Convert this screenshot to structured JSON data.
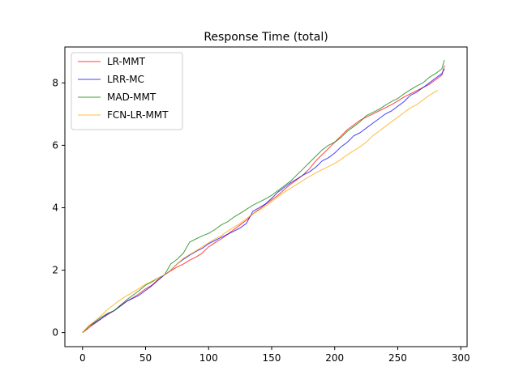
{
  "chart_data": {
    "type": "line",
    "title": "Response Time (total)",
    "xlabel": "",
    "ylabel": "",
    "xlim": [
      -14,
      305
    ],
    "ylim": [
      -0.45,
      9.15
    ],
    "xticks": [
      0,
      50,
      100,
      150,
      200,
      250,
      300
    ],
    "yticks": [
      0,
      2,
      4,
      6,
      8
    ],
    "grid": false,
    "legend_position": "top-left",
    "series": [
      {
        "name": "LR-MMT",
        "color": "#ff0000",
        "points": [
          [
            0,
            0
          ],
          [
            5,
            0.15
          ],
          [
            10,
            0.3
          ],
          [
            15,
            0.45
          ],
          [
            20,
            0.58
          ],
          [
            25,
            0.7
          ],
          [
            30,
            0.85
          ],
          [
            35,
            1.0
          ],
          [
            40,
            1.12
          ],
          [
            45,
            1.25
          ],
          [
            50,
            1.4
          ],
          [
            55,
            1.52
          ],
          [
            60,
            1.7
          ],
          [
            65,
            1.85
          ],
          [
            70,
            1.98
          ],
          [
            75,
            2.1
          ],
          [
            80,
            2.2
          ],
          [
            85,
            2.32
          ],
          [
            90,
            2.42
          ],
          [
            95,
            2.55
          ],
          [
            100,
            2.75
          ],
          [
            105,
            2.88
          ],
          [
            110,
            3.0
          ],
          [
            115,
            3.15
          ],
          [
            120,
            3.3
          ],
          [
            125,
            3.45
          ],
          [
            130,
            3.6
          ],
          [
            135,
            3.8
          ],
          [
            140,
            3.95
          ],
          [
            145,
            4.1
          ],
          [
            150,
            4.25
          ],
          [
            155,
            4.4
          ],
          [
            160,
            4.58
          ],
          [
            165,
            4.75
          ],
          [
            170,
            4.9
          ],
          [
            175,
            5.05
          ],
          [
            180,
            5.25
          ],
          [
            185,
            5.5
          ],
          [
            190,
            5.7
          ],
          [
            195,
            5.9
          ],
          [
            200,
            6.1
          ],
          [
            205,
            6.3
          ],
          [
            210,
            6.5
          ],
          [
            215,
            6.65
          ],
          [
            220,
            6.8
          ],
          [
            225,
            6.9
          ],
          [
            230,
            7.0
          ],
          [
            235,
            7.1
          ],
          [
            240,
            7.2
          ],
          [
            245,
            7.3
          ],
          [
            250,
            7.42
          ],
          [
            255,
            7.55
          ],
          [
            260,
            7.65
          ],
          [
            265,
            7.75
          ],
          [
            270,
            7.85
          ],
          [
            275,
            7.95
          ],
          [
            280,
            8.1
          ],
          [
            285,
            8.25
          ],
          [
            287,
            8.55
          ]
        ]
      },
      {
        "name": "LRR-MC",
        "color": "#0000ff",
        "points": [
          [
            0,
            0
          ],
          [
            5,
            0.2
          ],
          [
            10,
            0.32
          ],
          [
            15,
            0.45
          ],
          [
            20,
            0.6
          ],
          [
            25,
            0.7
          ],
          [
            30,
            0.85
          ],
          [
            35,
            1.0
          ],
          [
            40,
            1.1
          ],
          [
            45,
            1.2
          ],
          [
            50,
            1.35
          ],
          [
            55,
            1.5
          ],
          [
            60,
            1.68
          ],
          [
            65,
            1.85
          ],
          [
            70,
            2.0
          ],
          [
            75,
            2.2
          ],
          [
            80,
            2.35
          ],
          [
            85,
            2.48
          ],
          [
            90,
            2.6
          ],
          [
            95,
            2.7
          ],
          [
            100,
            2.85
          ],
          [
            105,
            2.95
          ],
          [
            110,
            3.05
          ],
          [
            115,
            3.15
          ],
          [
            120,
            3.25
          ],
          [
            125,
            3.35
          ],
          [
            130,
            3.5
          ],
          [
            135,
            3.88
          ],
          [
            140,
            4.0
          ],
          [
            145,
            4.12
          ],
          [
            150,
            4.3
          ],
          [
            155,
            4.5
          ],
          [
            160,
            4.65
          ],
          [
            165,
            4.8
          ],
          [
            170,
            4.92
          ],
          [
            175,
            5.05
          ],
          [
            180,
            5.15
          ],
          [
            185,
            5.3
          ],
          [
            190,
            5.5
          ],
          [
            195,
            5.6
          ],
          [
            200,
            5.75
          ],
          [
            205,
            5.95
          ],
          [
            210,
            6.1
          ],
          [
            215,
            6.3
          ],
          [
            220,
            6.4
          ],
          [
            225,
            6.55
          ],
          [
            230,
            6.7
          ],
          [
            235,
            6.85
          ],
          [
            240,
            7.0
          ],
          [
            245,
            7.1
          ],
          [
            250,
            7.25
          ],
          [
            255,
            7.4
          ],
          [
            260,
            7.6
          ],
          [
            265,
            7.7
          ],
          [
            270,
            7.85
          ],
          [
            275,
            8.0
          ],
          [
            280,
            8.15
          ],
          [
            285,
            8.3
          ],
          [
            287,
            8.45
          ]
        ]
      },
      {
        "name": "MAD-MMT",
        "color": "#008000",
        "points": [
          [
            0,
            0
          ],
          [
            5,
            0.2
          ],
          [
            10,
            0.35
          ],
          [
            15,
            0.5
          ],
          [
            20,
            0.62
          ],
          [
            25,
            0.7
          ],
          [
            30,
            0.88
          ],
          [
            35,
            1.05
          ],
          [
            40,
            1.2
          ],
          [
            45,
            1.35
          ],
          [
            50,
            1.52
          ],
          [
            55,
            1.62
          ],
          [
            60,
            1.75
          ],
          [
            65,
            1.85
          ],
          [
            70,
            2.2
          ],
          [
            75,
            2.35
          ],
          [
            80,
            2.55
          ],
          [
            85,
            2.9
          ],
          [
            90,
            3.0
          ],
          [
            95,
            3.1
          ],
          [
            100,
            3.18
          ],
          [
            105,
            3.3
          ],
          [
            110,
            3.45
          ],
          [
            115,
            3.55
          ],
          [
            120,
            3.7
          ],
          [
            125,
            3.82
          ],
          [
            130,
            3.95
          ],
          [
            135,
            4.08
          ],
          [
            140,
            4.18
          ],
          [
            145,
            4.28
          ],
          [
            150,
            4.4
          ],
          [
            155,
            4.55
          ],
          [
            160,
            4.7
          ],
          [
            165,
            4.85
          ],
          [
            170,
            5.05
          ],
          [
            175,
            5.25
          ],
          [
            180,
            5.45
          ],
          [
            185,
            5.65
          ],
          [
            190,
            5.85
          ],
          [
            195,
            6.0
          ],
          [
            200,
            6.1
          ],
          [
            205,
            6.25
          ],
          [
            210,
            6.45
          ],
          [
            215,
            6.6
          ],
          [
            220,
            6.75
          ],
          [
            225,
            6.95
          ],
          [
            230,
            7.05
          ],
          [
            235,
            7.15
          ],
          [
            240,
            7.28
          ],
          [
            245,
            7.4
          ],
          [
            250,
            7.5
          ],
          [
            255,
            7.65
          ],
          [
            260,
            7.78
          ],
          [
            265,
            7.9
          ],
          [
            270,
            8.0
          ],
          [
            275,
            8.18
          ],
          [
            280,
            8.3
          ],
          [
            285,
            8.45
          ],
          [
            287,
            8.73
          ]
        ]
      },
      {
        "name": "FCN-LR-MMT",
        "color": "#ffa500",
        "points": [
          [
            0,
            0
          ],
          [
            5,
            0.22
          ],
          [
            10,
            0.38
          ],
          [
            15,
            0.55
          ],
          [
            20,
            0.75
          ],
          [
            25,
            0.9
          ],
          [
            30,
            1.05
          ],
          [
            35,
            1.18
          ],
          [
            40,
            1.3
          ],
          [
            45,
            1.42
          ],
          [
            50,
            1.55
          ],
          [
            55,
            1.65
          ],
          [
            60,
            1.75
          ],
          [
            65,
            1.85
          ],
          [
            70,
            2.0
          ],
          [
            75,
            2.2
          ],
          [
            80,
            2.38
          ],
          [
            85,
            2.5
          ],
          [
            90,
            2.62
          ],
          [
            95,
            2.75
          ],
          [
            100,
            2.88
          ],
          [
            105,
            3.0
          ],
          [
            110,
            3.1
          ],
          [
            115,
            3.25
          ],
          [
            120,
            3.38
          ],
          [
            125,
            3.5
          ],
          [
            130,
            3.65
          ],
          [
            135,
            3.8
          ],
          [
            140,
            3.92
          ],
          [
            145,
            4.05
          ],
          [
            150,
            4.2
          ],
          [
            155,
            4.35
          ],
          [
            160,
            4.5
          ],
          [
            165,
            4.62
          ],
          [
            170,
            4.75
          ],
          [
            175,
            4.88
          ],
          [
            180,
            5.0
          ],
          [
            185,
            5.12
          ],
          [
            190,
            5.22
          ],
          [
            195,
            5.32
          ],
          [
            200,
            5.42
          ],
          [
            205,
            5.55
          ],
          [
            210,
            5.7
          ],
          [
            215,
            5.82
          ],
          [
            220,
            5.95
          ],
          [
            225,
            6.1
          ],
          [
            230,
            6.3
          ],
          [
            235,
            6.45
          ],
          [
            240,
            6.6
          ],
          [
            245,
            6.75
          ],
          [
            250,
            6.9
          ],
          [
            255,
            7.05
          ],
          [
            260,
            7.2
          ],
          [
            265,
            7.3
          ],
          [
            270,
            7.45
          ],
          [
            275,
            7.6
          ],
          [
            280,
            7.72
          ],
          [
            282,
            7.75
          ]
        ]
      }
    ]
  }
}
